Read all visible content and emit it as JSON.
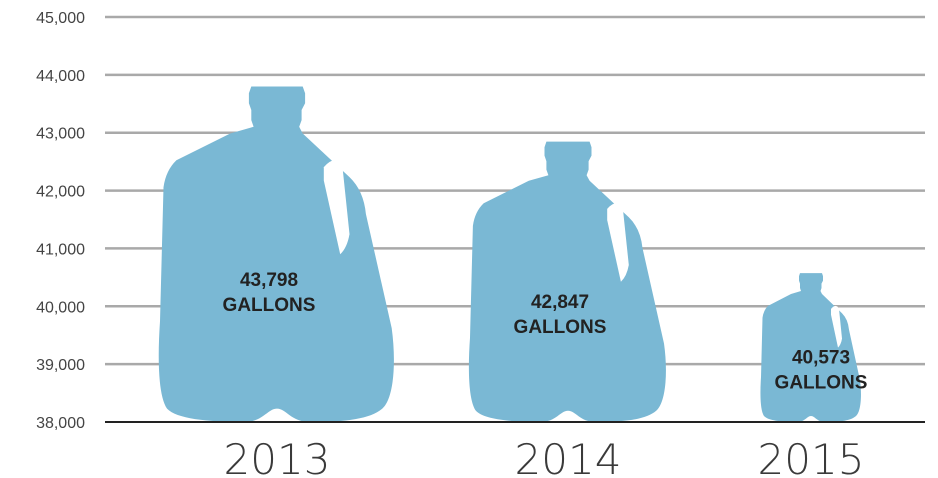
{
  "chart_data": {
    "type": "bar",
    "categories": [
      "2013",
      "2014",
      "2015"
    ],
    "values": [
      43798,
      42847,
      40573
    ],
    "value_labels": [
      "43,798",
      "42,847",
      "40,573"
    ],
    "unit_label": "GALLONS",
    "yticks": [
      "38,000",
      "39,000",
      "40,000",
      "41,000",
      "42,000",
      "43,000",
      "44,000",
      "45,000"
    ],
    "ylim": [
      38000,
      45000
    ],
    "grid": true,
    "color": "#7ab8d4",
    "mark_shape": "milk-jug-icon"
  }
}
